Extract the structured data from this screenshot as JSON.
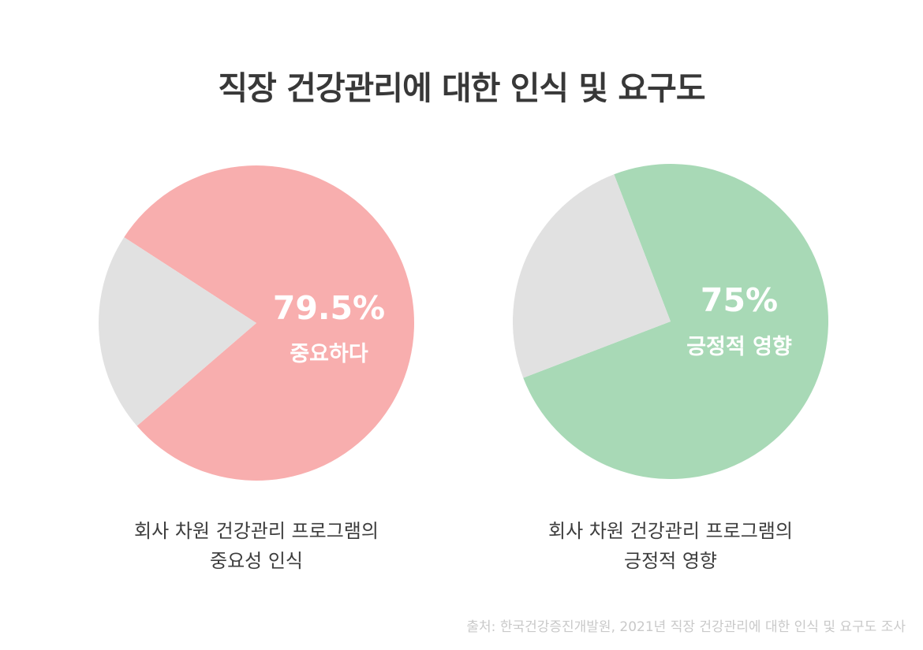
{
  "title": "직장 건강관리에 대한 인식 및 요구도",
  "chart_data": [
    {
      "type": "pie",
      "slices": [
        {
          "label": "중요하다",
          "value": 79.5,
          "color": "#f8aeae"
        },
        {
          "label": "",
          "value": 20.5,
          "color": "#e1e1e1"
        }
      ],
      "value_label": "79.5%",
      "slice_label": "중요하다",
      "caption": [
        "회사 차원 건강관리 프로그램의",
        "중요성 인식"
      ]
    },
    {
      "type": "pie",
      "slices": [
        {
          "label": "긍정적 영향",
          "value": 75,
          "color": "#a8d9b6"
        },
        {
          "label": "",
          "value": 25,
          "color": "#e1e1e1"
        }
      ],
      "value_label": "75%",
      "slice_label": "긍정적 영향",
      "caption": [
        "회사 차원 건강관리 프로그램의",
        "긍정적 영향"
      ]
    }
  ],
  "source": "출처: 한국건강증진개발원, 2021년 직장 건강관리에 대한 인식 및 요구도 조사"
}
